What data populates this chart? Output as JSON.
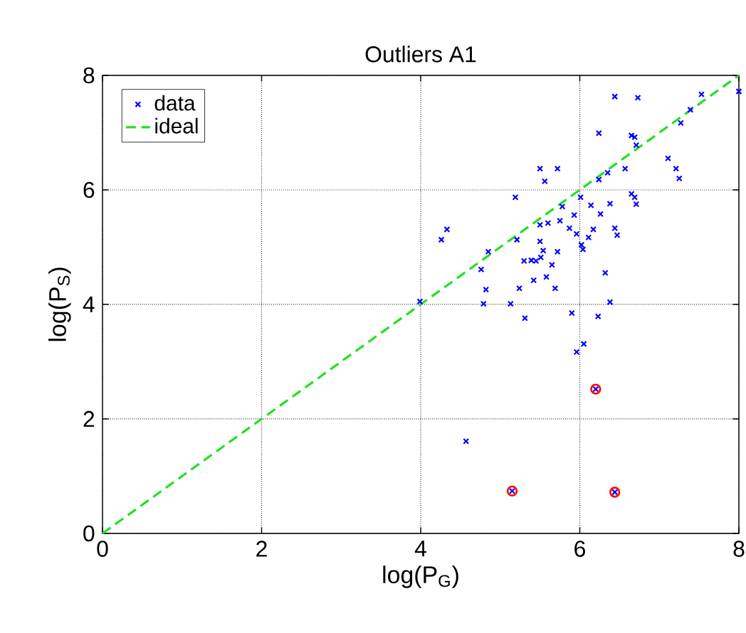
{
  "chart_data": {
    "type": "scatter",
    "title": "Outliers A1",
    "xlabel": "log(P$_{G}$)",
    "ylabel": "log(P$_{S}$)",
    "xlim": [
      0,
      8
    ],
    "ylim": [
      0,
      8
    ],
    "xticks": [
      0,
      2,
      4,
      6,
      8
    ],
    "yticks": [
      0,
      2,
      4,
      6,
      8
    ],
    "grid": true,
    "legend": "top left",
    "series": [
      {
        "name": "data",
        "marker": "cross",
        "color": "#0000ff",
        "x": [
          6.44,
          6.73,
          7.53,
          8.0,
          7.39,
          7.27,
          6.24,
          6.65,
          6.69,
          6.71,
          7.11,
          7.21,
          7.25,
          5.5,
          5.72,
          5.56,
          6.35,
          6.57,
          6.24,
          5.19,
          6.01,
          6.65,
          6.69,
          6.71,
          6.38,
          6.14,
          6.26,
          5.78,
          5.93,
          5.75,
          5.5,
          5.6,
          4.26,
          4.33,
          5.21,
          5.87,
          5.96,
          6.17,
          6.11,
          6.44,
          6.47,
          5.5,
          6.02,
          6.04,
          4.85,
          5.72,
          5.54,
          5.3,
          5.39,
          5.45,
          5.51,
          5.65,
          4.76,
          5.42,
          5.58,
          5.24,
          4.82,
          5.69,
          6.32,
          3.99,
          4.79,
          5.13,
          6.38,
          5.31,
          5.9,
          6.23,
          6.05,
          5.96,
          6.2,
          4.57,
          5.15,
          6.44
        ],
        "values": [
          7.63,
          7.61,
          7.67,
          7.72,
          7.4,
          7.17,
          6.99,
          6.95,
          6.92,
          6.78,
          6.55,
          6.37,
          6.2,
          6.37,
          6.37,
          6.15,
          6.3,
          6.37,
          6.18,
          5.87,
          5.87,
          5.93,
          5.87,
          5.75,
          5.76,
          5.73,
          5.58,
          5.71,
          5.56,
          5.46,
          5.39,
          5.42,
          5.13,
          5.31,
          5.13,
          5.33,
          5.23,
          5.31,
          5.17,
          5.33,
          5.21,
          5.1,
          5.04,
          4.96,
          4.92,
          4.92,
          4.94,
          4.76,
          4.77,
          4.76,
          4.82,
          4.69,
          4.61,
          4.42,
          4.48,
          4.28,
          4.26,
          4.28,
          4.55,
          4.05,
          4.01,
          4.01,
          4.04,
          3.76,
          3.85,
          3.79,
          3.31,
          3.17,
          2.52,
          1.61,
          0.74,
          0.72
        ]
      },
      {
        "name": "ideal",
        "type": "line",
        "line_style": "dashed",
        "marker": "none",
        "color": "#22e022",
        "x": [
          0,
          8
        ],
        "values": [
          0,
          8
        ]
      },
      {
        "marker": "circle",
        "color": "#ff0000",
        "x": [
          6.2,
          5.15,
          6.44
        ],
        "values": [
          2.52,
          0.74,
          0.72
        ]
      }
    ]
  }
}
